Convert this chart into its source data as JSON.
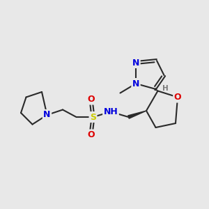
{
  "bg_color": "#e8e8e8",
  "bond_color": "#2a2a2a",
  "bond_lw": 1.5,
  "atom_colors": {
    "N": "#0000dd",
    "O": "#dd0000",
    "S": "#cccc00",
    "H": "#7a7a7a",
    "C": "#2a2a2a"
  },
  "figsize": [
    3.0,
    3.0
  ],
  "dpi": 100,
  "xlim": [
    0,
    10
  ],
  "ylim": [
    0,
    10
  ],
  "font_size_large": 9,
  "font_size_small": 7.5
}
